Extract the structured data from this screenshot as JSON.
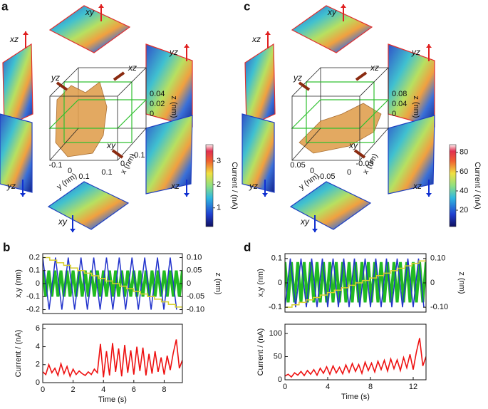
{
  "panels": [
    {
      "letter": "a",
      "view_labels": [
        "xy",
        "xz",
        "yz",
        "yz",
        "xz",
        "xy"
      ],
      "box_labels": [
        "yz",
        "xz",
        "xy"
      ],
      "z_ticks": [
        0.04,
        0.02,
        0
      ],
      "z_label": "z (nm)",
      "y_ticks": [
        -0.1,
        0,
        0.1
      ],
      "y_label": "y (nm)",
      "x_ticks": [
        0.1,
        0,
        -0.1
      ],
      "x_label": "x (nm)"
    },
    {
      "letter": "c",
      "view_labels": [
        "xy",
        "xz",
        "yz",
        "yz",
        "xz",
        "xy"
      ],
      "box_labels": [
        "yz",
        "xz",
        "xy"
      ],
      "z_ticks": [
        0.08,
        0.04,
        0
      ],
      "z_label": "z (nm)",
      "y_ticks": [
        0.05,
        0,
        -0.05
      ],
      "y_label": "y (nm)",
      "x_ticks": [
        0,
        -0.05
      ],
      "x_label": "x (nm)"
    }
  ],
  "chart_data": [
    {
      "type": "colorbar",
      "ylabel": "Current / (nA)",
      "ylim": [
        0.2,
        3.7
      ],
      "yticks": [
        1,
        2,
        3
      ]
    },
    {
      "type": "colorbar",
      "ylabel": "Current / (nA)",
      "ylim": [
        3,
        88
      ],
      "yticks": [
        20,
        40,
        60,
        80
      ]
    },
    {
      "type": "line",
      "panel_label": "b",
      "ylabel": "x,y (nm)",
      "y2label": "z (nm)",
      "xlim": [
        0,
        9.2
      ],
      "ylim": [
        -0.23,
        0.23
      ],
      "yticks": [
        -0.2,
        -0.1,
        0,
        0.1,
        0.2
      ],
      "y2lim": [
        -0.115,
        0.115
      ],
      "y2ticks": [
        {
          "value": -0.1,
          "label": "-0.10"
        },
        -0.05,
        0,
        0.05,
        {
          "value": 0.1,
          "label": "0.10"
        }
      ],
      "series": [
        {
          "color": "#22bb22",
          "x": [
            0,
            0.2,
            0.4,
            0.6,
            0.8,
            1,
            1.2,
            1.4,
            1.6,
            1.8,
            2,
            2.2,
            2.4,
            2.6,
            2.8,
            3,
            3.2,
            3.4,
            3.6,
            3.8,
            4,
            4.2,
            4.4,
            4.6,
            4.8,
            5,
            5.2,
            5.4,
            5.6,
            5.8,
            6,
            6.2,
            6.4,
            6.6,
            6.8,
            7,
            7.2,
            7.4,
            7.6,
            7.8,
            8,
            8.2,
            8.4,
            8.6,
            8.8,
            9,
            9.2
          ],
          "values": [
            0.1,
            -0.1,
            0.1,
            -0.1,
            0.1,
            -0.1,
            0.1,
            -0.1,
            0.1,
            -0.1,
            0.1,
            -0.1,
            0.1,
            -0.1,
            0.1,
            -0.1,
            0.1,
            -0.1,
            0.1,
            -0.1,
            0.1,
            -0.1,
            0.1,
            -0.1,
            0.1,
            -0.1,
            0.1,
            -0.1,
            0.1,
            -0.1,
            0.1,
            -0.1,
            0.1,
            -0.1,
            0.1,
            -0.1,
            0.1,
            -0.1,
            0.1,
            -0.1,
            0.1,
            -0.1,
            0.1,
            -0.1,
            0.1,
            -0.1,
            0.1
          ]
        },
        {
          "color": "#2233cc",
          "x": [
            0,
            0.42,
            0.84,
            1.26,
            1.68,
            2.1,
            2.52,
            2.94,
            3.36,
            3.78,
            4.2,
            4.62,
            5.04,
            5.46,
            5.88,
            6.3,
            6.72,
            7.14,
            7.56,
            7.98,
            8.4,
            8.82
          ],
          "values": [
            0.2,
            -0.2,
            0.2,
            -0.2,
            0.2,
            -0.2,
            0.2,
            -0.2,
            0.2,
            -0.2,
            0.2,
            -0.2,
            0.2,
            -0.2,
            0.2,
            -0.2,
            0.2,
            -0.2,
            0.2,
            -0.2,
            0.2,
            -0.2
          ]
        },
        {
          "color": "#d8d030",
          "axis": "y2",
          "step": true,
          "x": [
            0,
            0.46,
            0.92,
            1.38,
            1.84,
            2.3,
            2.76,
            3.22,
            3.68,
            4.14,
            4.6,
            5.06,
            5.52,
            5.98,
            6.44,
            6.9,
            7.36,
            7.82,
            8.28,
            8.74,
            9.2
          ],
          "values": [
            0.1,
            0.09,
            0.08,
            0.07,
            0.06,
            0.05,
            0.04,
            0.03,
            0.02,
            0.01,
            0,
            -0.01,
            -0.02,
            -0.03,
            -0.04,
            -0.05,
            -0.06,
            -0.07,
            -0.08,
            -0.09,
            -0.1
          ]
        }
      ]
    },
    {
      "type": "line",
      "ylabel": "Current / (nA)",
      "xlabel": "Time (s)",
      "color": "#ee1111",
      "xlim": [
        0,
        9.2
      ],
      "xticks": [
        0,
        2,
        4,
        6,
        8
      ],
      "ylim": [
        0,
        6.5
      ],
      "yticks": [
        0,
        2,
        4,
        6
      ],
      "x": [
        0,
        0.2,
        0.4,
        0.6,
        0.8,
        1,
        1.2,
        1.4,
        1.6,
        1.8,
        2,
        2.2,
        2.4,
        2.6,
        2.8,
        3,
        3.2,
        3.4,
        3.6,
        3.8,
        4,
        4.2,
        4.4,
        4.6,
        4.8,
        5,
        5.2,
        5.4,
        5.6,
        5.8,
        6,
        6.2,
        6.4,
        6.6,
        6.8,
        7,
        7.2,
        7.4,
        7.6,
        7.8,
        8,
        8.2,
        8.4,
        8.6,
        8.8,
        9,
        9.2
      ],
      "values": [
        1.2,
        0.9,
        2.0,
        1.1,
        1.6,
        0.8,
        2.1,
        1.0,
        1.8,
        0.7,
        1.5,
        0.9,
        1.3,
        1.0,
        0.8,
        1.2,
        0.9,
        1.5,
        1.1,
        4.3,
        0.6,
        3.5,
        0.8,
        4.4,
        1.2,
        3.8,
        0.7,
        4.2,
        1.1,
        3.6,
        0.9,
        4.0,
        1.3,
        3.9,
        0.8,
        3.2,
        1.0,
        3.5,
        1.2,
        2.8,
        0.9,
        3.0,
        1.4,
        3.3,
        4.8,
        1.6,
        2.5
      ]
    },
    {
      "type": "line",
      "panel_label": "d",
      "ylabel": "x,y (nm)",
      "y2label": "z (nm)",
      "xlim": [
        0,
        13.2
      ],
      "ylim": [
        -0.12,
        0.12
      ],
      "yticks": [
        -0.1,
        0,
        0.1
      ],
      "y2lim": [
        -0.12,
        0.12
      ],
      "y2ticks": [
        {
          "value": -0.1,
          "label": "-0.10"
        },
        0,
        {
          "value": 0.1,
          "label": "0.10"
        }
      ],
      "series": [
        {
          "color": "#22bb22",
          "x": [
            0,
            0.3,
            0.6,
            0.9,
            1.2,
            1.5,
            1.8,
            2.1,
            2.4,
            2.7,
            3,
            3.3,
            3.6,
            3.9,
            4.2,
            4.5,
            4.8,
            5.1,
            5.4,
            5.7,
            6,
            6.3,
            6.6,
            6.9,
            7.2,
            7.5,
            7.8,
            8.1,
            8.4,
            8.7,
            9,
            9.3,
            9.6,
            9.9,
            10.2,
            10.5,
            10.8,
            11.1,
            11.4,
            11.7,
            12,
            12.3,
            12.6,
            12.9,
            13.2
          ],
          "values": [
            0.085,
            -0.08,
            0.085,
            -0.08,
            0.085,
            -0.08,
            0.085,
            -0.08,
            0.085,
            -0.08,
            0.085,
            -0.08,
            0.085,
            -0.08,
            0.085,
            -0.08,
            0.085,
            -0.08,
            0.085,
            -0.08,
            0.085,
            -0.08,
            0.085,
            -0.08,
            0.085,
            -0.08,
            0.085,
            -0.08,
            0.085,
            -0.08,
            0.085,
            -0.08,
            0.085,
            -0.08,
            0.085,
            -0.08,
            0.085,
            -0.08,
            0.085,
            -0.08,
            0.085,
            -0.08,
            0.085,
            -0.08,
            0.085
          ]
        },
        {
          "color": "#2233cc",
          "x": [
            0,
            0.5,
            1,
            1.5,
            2,
            2.5,
            3,
            3.5,
            4,
            4.5,
            5,
            5.5,
            6,
            6.5,
            7,
            7.5,
            8,
            8.5,
            9,
            9.5,
            10,
            10.5,
            11,
            11.5,
            12,
            12.5,
            13
          ],
          "values": [
            -0.1,
            0.1,
            -0.1,
            0.1,
            -0.1,
            0.1,
            -0.1,
            0.1,
            -0.1,
            0.1,
            -0.1,
            0.1,
            -0.1,
            0.1,
            -0.1,
            0.1,
            -0.1,
            0.1,
            -0.1,
            0.1,
            -0.1,
            0.1,
            -0.1,
            0.1,
            -0.1,
            0.1,
            -0.1
          ]
        },
        {
          "color": "#d8d030",
          "axis": "y2",
          "step": true,
          "x": [
            0,
            0.66,
            1.32,
            1.98,
            2.64,
            3.3,
            3.96,
            4.62,
            5.28,
            5.94,
            6.6,
            7.26,
            7.92,
            8.58,
            9.24,
            9.9,
            10.56,
            11.22,
            11.88,
            12.54,
            13.2
          ],
          "values": [
            -0.1,
            -0.09,
            -0.08,
            -0.07,
            -0.06,
            -0.05,
            -0.04,
            -0.03,
            -0.02,
            -0.01,
            0,
            0.01,
            0.02,
            0.03,
            0.04,
            0.05,
            0.06,
            0.07,
            0.08,
            0.09,
            0.1
          ]
        }
      ]
    },
    {
      "type": "line",
      "ylabel": "Current / (nA)",
      "xlabel": "Time (s)",
      "color": "#ee1111",
      "xlim": [
        0,
        13.2
      ],
      "xticks": [
        0,
        4,
        8,
        12
      ],
      "ylim": [
        0,
        120
      ],
      "yticks": [
        0,
        50,
        100
      ],
      "x": [
        0,
        0.3,
        0.6,
        0.9,
        1.2,
        1.5,
        1.8,
        2.1,
        2.4,
        2.7,
        3,
        3.3,
        3.6,
        3.9,
        4.2,
        4.5,
        4.8,
        5.1,
        5.4,
        5.7,
        6,
        6.3,
        6.6,
        6.9,
        7.2,
        7.5,
        7.8,
        8.1,
        8.4,
        8.7,
        9,
        9.3,
        9.6,
        9.9,
        10.2,
        10.5,
        10.8,
        11.1,
        11.4,
        11.7,
        12,
        12.3,
        12.6,
        12.9,
        13.2
      ],
      "values": [
        8,
        12,
        6,
        15,
        10,
        18,
        9,
        20,
        12,
        22,
        10,
        25,
        14,
        28,
        12,
        30,
        15,
        27,
        13,
        32,
        16,
        35,
        18,
        33,
        14,
        38,
        20,
        36,
        17,
        40,
        22,
        42,
        19,
        45,
        24,
        43,
        20,
        48,
        26,
        55,
        22,
        60,
        90,
        30,
        50
      ]
    }
  ]
}
